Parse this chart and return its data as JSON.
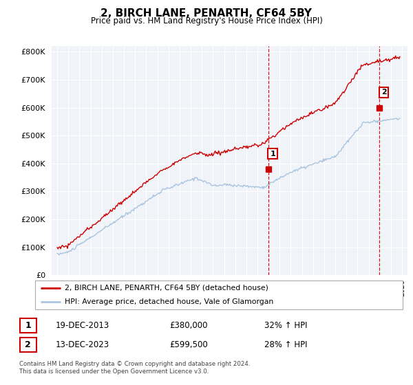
{
  "title": "2, BIRCH LANE, PENARTH, CF64 5BY",
  "subtitle": "Price paid vs. HM Land Registry's House Price Index (HPI)",
  "legend_line1": "2, BIRCH LANE, PENARTH, CF64 5BY (detached house)",
  "legend_line2": "HPI: Average price, detached house, Vale of Glamorgan",
  "annotation1_label": "1",
  "annotation1_date": "19-DEC-2013",
  "annotation1_price": "£380,000",
  "annotation1_hpi": "32% ↑ HPI",
  "annotation2_label": "2",
  "annotation2_date": "13-DEC-2023",
  "annotation2_price": "£599,500",
  "annotation2_hpi": "28% ↑ HPI",
  "footnote": "Contains HM Land Registry data © Crown copyright and database right 2024.\nThis data is licensed under the Open Government Licence v3.0.",
  "sale1_year": 2013.97,
  "sale1_price": 380000,
  "sale2_year": 2023.97,
  "sale2_price": 599500,
  "hpi_color": "#aac4e0",
  "price_color": "#cc0000",
  "sale_marker_color": "#cc0000",
  "dashed_line_color": "#cc0000",
  "ylim_min": 0,
  "ylim_max": 820000,
  "bg_color": "#f0f4f8"
}
